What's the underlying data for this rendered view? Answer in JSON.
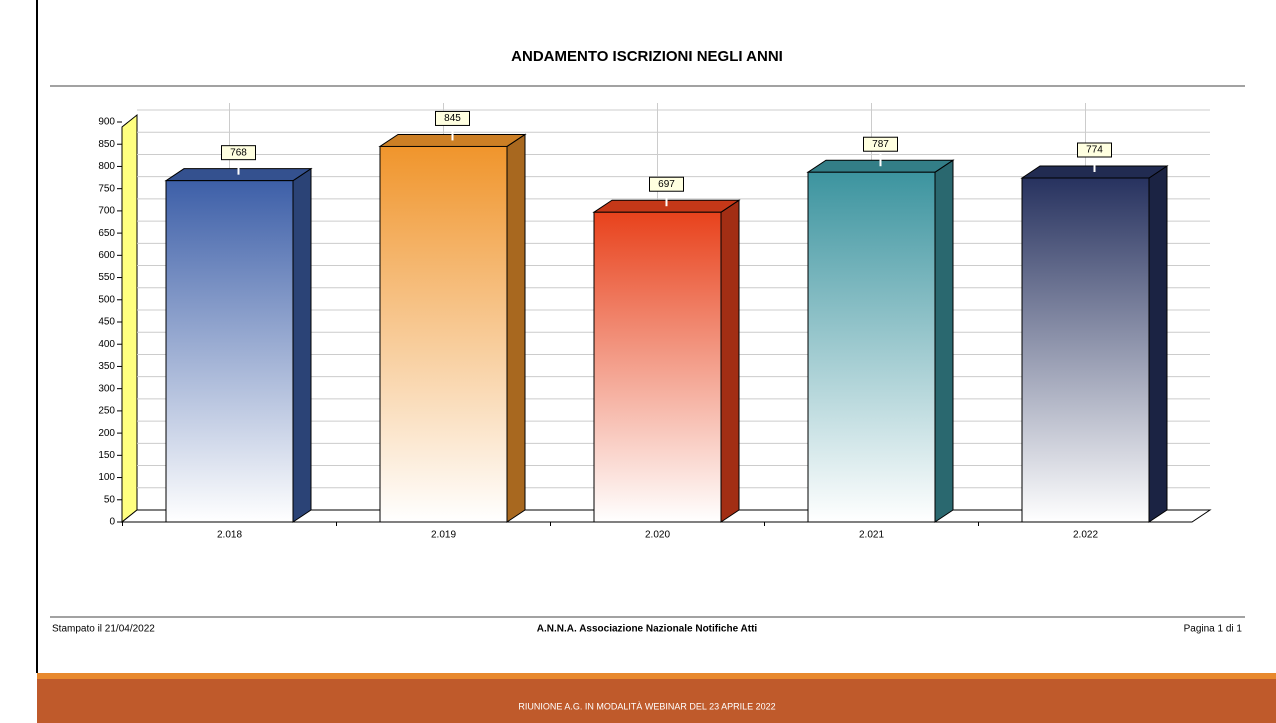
{
  "chart_data": {
    "type": "bar3d",
    "title": "ANDAMENTO ISCRIZIONI NEGLI ANNI",
    "categories": [
      "2.018",
      "2.019",
      "2.020",
      "2.021",
      "2.022"
    ],
    "values": [
      768,
      845,
      697,
      787,
      774
    ],
    "colors": [
      "#3d5fa8",
      "#f0952c",
      "#e8421c",
      "#3c949f",
      "#27325f"
    ],
    "ylim": [
      0,
      900
    ],
    "yticks": [
      0,
      50,
      100,
      150,
      200,
      250,
      300,
      350,
      400,
      450,
      500,
      550,
      600,
      650,
      700,
      750,
      800,
      850,
      900
    ],
    "grid": true
  },
  "footer": {
    "left": "Stampato il 21/04/2022",
    "center": "A.N.N.A. Associazione Nazionale Notifiche Atti",
    "right": "Pagina 1 di 1"
  },
  "banner": "RIUNIONE A.G. IN MODALITÀ WEBINAR DEL 23 APRILE 2022"
}
